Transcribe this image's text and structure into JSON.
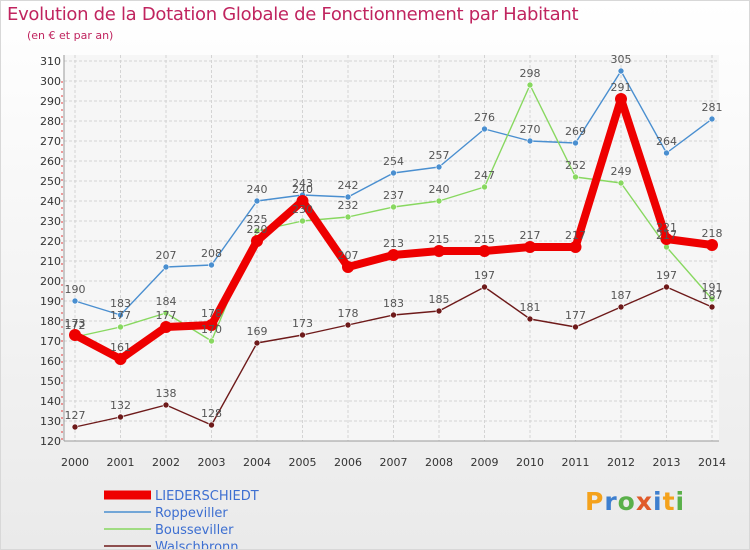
{
  "header": {
    "title": "Evolution de la Dotation Globale de Fonctionnement par Habitant",
    "subtitle": "(en € et par an)"
  },
  "brand": {
    "text": "Proxiti",
    "letters": [
      "P",
      "r",
      "o",
      "x",
      "i",
      "t",
      "i"
    ],
    "letter_colors": [
      "#f4a21c",
      "#3d7fcf",
      "#5ab04a",
      "#e05a2a",
      "#3d7fcf",
      "#f4a21c",
      "#5ab04a"
    ]
  },
  "chart_data": {
    "type": "line",
    "title": "Evolution de la Dotation Globale de Fonctionnement par Habitant",
    "subtitle": "(en € et par an)",
    "xlabel": "",
    "ylabel": "",
    "x": [
      2000,
      2001,
      2002,
      2003,
      2004,
      2005,
      2006,
      2007,
      2008,
      2009,
      2010,
      2011,
      2012,
      2013,
      2014
    ],
    "x_labels": [
      "2000",
      "2001",
      "2002",
      "2003",
      "2004",
      "2005",
      "2006",
      "2007",
      "2008",
      "2009",
      "2010",
      "2011",
      "2012",
      "2013",
      "2014"
    ],
    "ylim": [
      120,
      310
    ],
    "yticks": [
      120,
      130,
      140,
      150,
      160,
      170,
      180,
      190,
      200,
      210,
      220,
      230,
      240,
      250,
      260,
      270,
      280,
      290,
      300,
      310
    ],
    "grid": true,
    "legend_position": "bottom-left",
    "series": [
      {
        "name": "Roppeviller",
        "color": "#4a8fd0",
        "values": [
          190,
          183,
          207,
          208,
          240,
          243,
          242,
          254,
          257,
          276,
          270,
          269,
          305,
          264,
          281
        ]
      },
      {
        "name": "Bousseviller",
        "color": "#88d860",
        "values": [
          172,
          177,
          184,
          170,
          225,
          230,
          232,
          237,
          240,
          247,
          298,
          252,
          249,
          217,
          191
        ]
      },
      {
        "name": "Walschbronn",
        "color": "#6e1a1a",
        "values": [
          127,
          132,
          138,
          128,
          169,
          173,
          178,
          183,
          185,
          197,
          181,
          177,
          187,
          197,
          187
        ]
      },
      {
        "name": "LIEDERSCHIEDT",
        "color": "#ee0000",
        "values": [
          173,
          161,
          177,
          178,
          220,
          240,
          207,
          213,
          215,
          215,
          217,
          217,
          291,
          221,
          218
        ]
      }
    ],
    "legend": [
      "LIEDERSCHIEDT",
      "Roppeviller",
      "Bousseviller",
      "Walschbronn"
    ]
  }
}
